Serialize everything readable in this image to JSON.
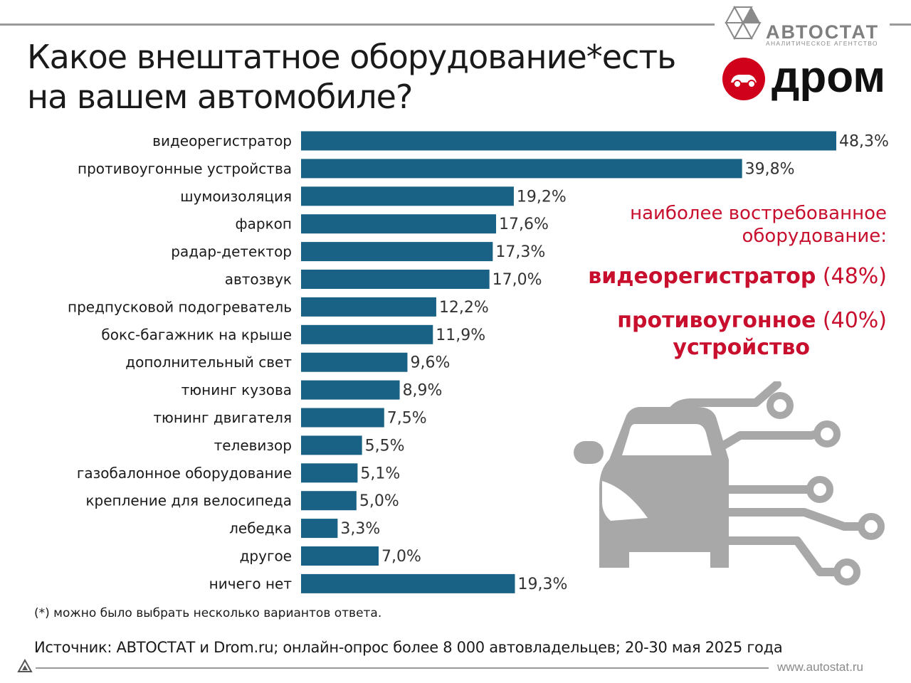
{
  "title_line1": "Какое внештатное оборудование*есть",
  "title_line2": "на вашем автомобиле?",
  "logos": {
    "autostat_name": "АВТОСТАТ",
    "autostat_sub": "АНАЛИТИЧЕСКОЕ АГЕНТСТВО",
    "drom_name": "дром"
  },
  "colors": {
    "bar": "#1a6285",
    "accent": "#c8102e",
    "icon_gray": "#a8a8a8"
  },
  "chart_data": {
    "type": "bar",
    "orientation": "horizontal",
    "categories": [
      "видеорегистратор",
      "противоугонные устройства",
      "шумоизоляция",
      "фаркоп",
      "радар-детектор",
      "автозвук",
      "предпусковой подогреватель",
      "бокс-багажник на крыше",
      "дополнительный свет",
      "тюнинг кузова",
      "тюнинг двигателя",
      "телевизор",
      "газобалонное оборудование",
      "крепление для велосипеда",
      "лебедка",
      "другое",
      "ничего нет"
    ],
    "values": [
      48.3,
      39.8,
      19.2,
      17.6,
      17.3,
      17.0,
      12.2,
      11.9,
      9.6,
      8.9,
      7.5,
      5.5,
      5.1,
      5.0,
      3.3,
      7.0,
      19.3
    ],
    "labels": [
      "48,3%",
      "39,8%",
      "19,2%",
      "17,6%",
      "17,3%",
      "17,0%",
      "12,2%",
      "11,9%",
      "9,6%",
      "8,9%",
      "7,5%",
      "5,5%",
      "5,1%",
      "5,0%",
      "3,3%",
      "7,0%",
      "19,3%"
    ],
    "unit": "%",
    "xlim": [
      0,
      48.3
    ],
    "grid": false,
    "legend": "none"
  },
  "highlight": {
    "heading_line1": "наиболее востребованное",
    "heading_line2": "оборудование:",
    "item1_name": "видеорегистратор",
    "item1_pct": "(48%)",
    "item2_name_line1": "противоугонное",
    "item2_pct": "(40%)",
    "item2_name_line2": "устройство"
  },
  "footnote": "(*) можно было выбрать несколько вариантов ответа.",
  "source": "Источник: АВТОСТАТ и Drom.ru; онлайн-опрос более 8 000 автовладельцев; 20-30 мая 2025 года",
  "site": "www.autostat.ru"
}
